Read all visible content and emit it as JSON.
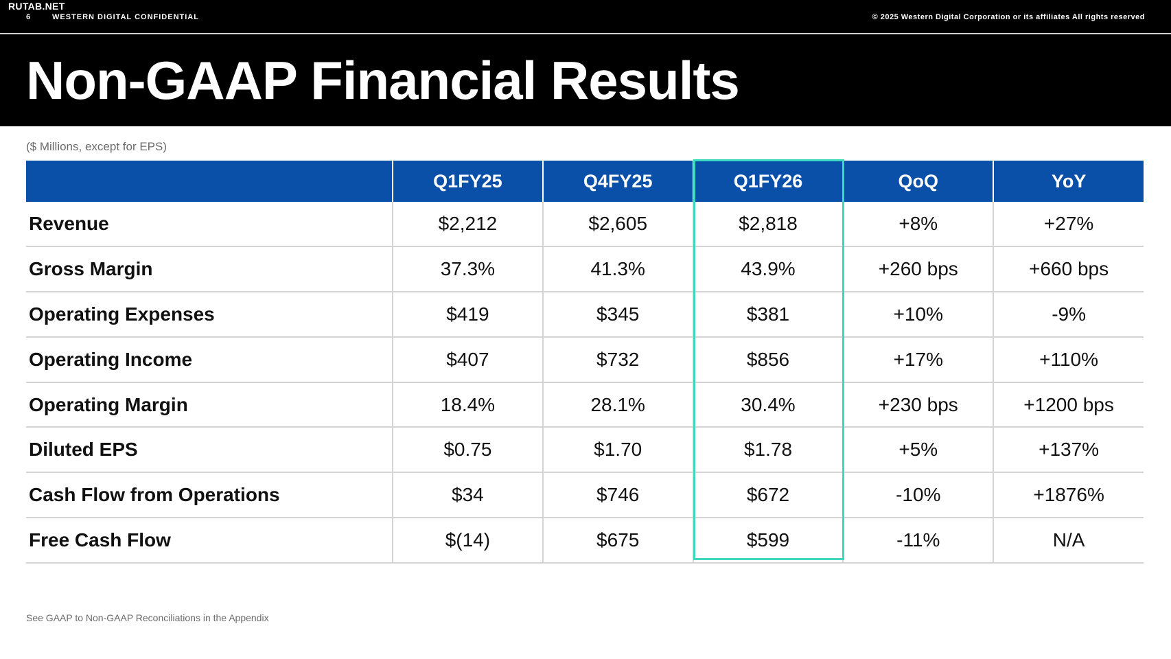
{
  "header": {
    "watermark": "RUTAB.NET",
    "slide_number": "6",
    "confidential": "WESTERN DIGITAL CONFIDENTIAL",
    "copyright": "© 2025 Western Digital Corporation or its affiliates  All rights reserved"
  },
  "title": "Non-GAAP Financial Results",
  "units_note": "($ Millions, except for EPS)",
  "table": {
    "columns": [
      "",
      "Q1FY25",
      "Q4FY25",
      "Q1FY26",
      "QoQ",
      "YoY"
    ],
    "highlighted_column": "Q1FY26",
    "rows": [
      {
        "label": "Revenue",
        "values": [
          "$2,212",
          "$2,605",
          "$2,818",
          "+8%",
          "+27%"
        ]
      },
      {
        "label": "Gross Margin",
        "values": [
          "37.3%",
          "41.3%",
          "43.9%",
          "+260 bps",
          "+660 bps"
        ]
      },
      {
        "label": "Operating Expenses",
        "values": [
          "$419",
          "$345",
          "$381",
          "+10%",
          "-9%"
        ]
      },
      {
        "label": "Operating Income",
        "values": [
          "$407",
          "$732",
          "$856",
          "+17%",
          "+110%"
        ]
      },
      {
        "label": "Operating Margin",
        "values": [
          "18.4%",
          "28.1%",
          "30.4%",
          "+230 bps",
          "+1200 bps"
        ]
      },
      {
        "label": "Diluted EPS",
        "values": [
          "$0.75",
          "$1.70",
          "$1.78",
          "+5%",
          "+137%"
        ]
      },
      {
        "label": "Cash Flow from Operations",
        "values": [
          "$34",
          "$746",
          "$672",
          "-10%",
          "+1876%"
        ]
      },
      {
        "label": "Free Cash Flow",
        "values": [
          "$(14)",
          "$675",
          "$599",
          "-11%",
          "N/A"
        ]
      }
    ]
  },
  "footnote": "See GAAP to Non-GAAP Reconciliations in the Appendix",
  "colors": {
    "header_blue": "#0a4fa8",
    "highlight_teal": "#3ed8bf",
    "band_black": "#000000"
  }
}
